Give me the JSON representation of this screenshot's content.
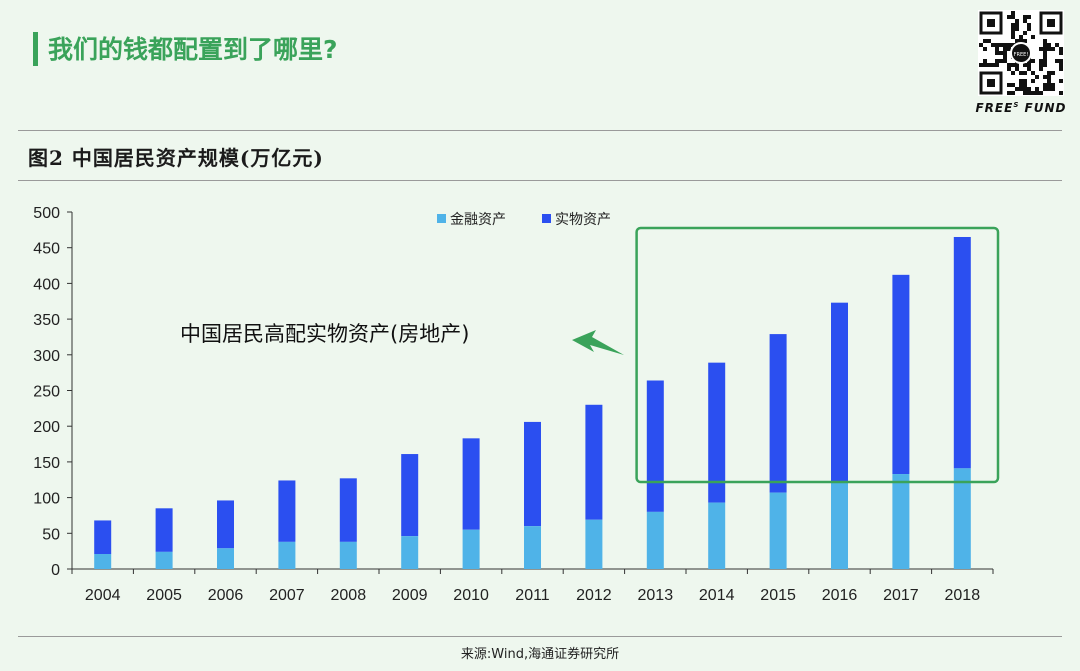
{
  "header": {
    "title": "我们的钱都配置到了哪里?"
  },
  "brand": {
    "text": "FREE",
    "sup": "S",
    "text2": " FUND",
    "qr_center": "FREE!"
  },
  "figure": {
    "title": "图2  中国居民资产规模(万亿元)"
  },
  "annotation": {
    "text": "中国居民高配实物资产(房地产)"
  },
  "source": {
    "text": "来源:Wind,海通证券研究所"
  },
  "colors": {
    "financial": "#4fb3e8",
    "real": "#2b4ff0",
    "highlight": "#3aa35a",
    "arrow": "#3aa35a"
  },
  "chart_data": {
    "type": "bar",
    "stacked": true,
    "categories": [
      "2004",
      "2005",
      "2006",
      "2007",
      "2008",
      "2009",
      "2010",
      "2011",
      "2012",
      "2013",
      "2014",
      "2015",
      "2016",
      "2017",
      "2018"
    ],
    "series": [
      {
        "name": "金融资产",
        "values": [
          21,
          24,
          29,
          38,
          38,
          46,
          55,
          60,
          69,
          80,
          93,
          107,
          122,
          133,
          141
        ]
      },
      {
        "name": "实物资产",
        "values": [
          47,
          61,
          67,
          86,
          89,
          115,
          128,
          146,
          161,
          184,
          196,
          222,
          251,
          279,
          324
        ]
      }
    ],
    "totals": [
      68,
      85,
      96,
      124,
      127,
      161,
      183,
      206,
      230,
      264,
      289,
      329,
      373,
      412,
      465
    ],
    "yticks": [
      0,
      50,
      100,
      150,
      200,
      250,
      300,
      350,
      400,
      450,
      500
    ],
    "ylim": [
      0,
      500
    ],
    "legend_position": "top",
    "highlight_range": [
      "2013",
      "2018"
    ]
  }
}
